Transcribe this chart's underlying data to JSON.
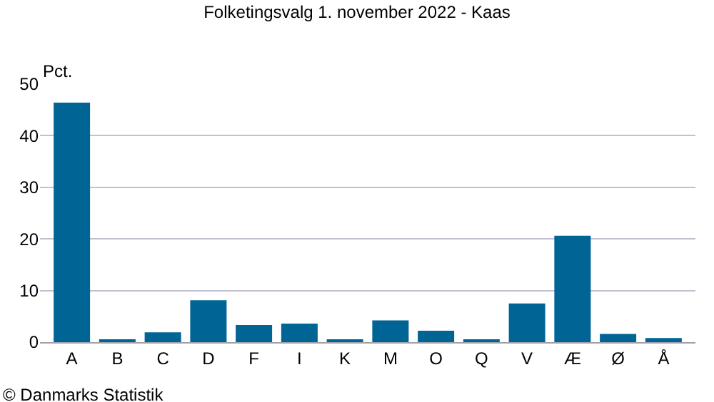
{
  "chart_data": {
    "type": "bar",
    "title": "Folketingsvalg 1. november 2022 - Kaas",
    "ylabel": "Pct.",
    "categories": [
      "A",
      "B",
      "C",
      "D",
      "F",
      "I",
      "K",
      "M",
      "O",
      "Q",
      "V",
      "Æ",
      "Ø",
      "Å"
    ],
    "values": [
      46.4,
      0.3,
      1.9,
      8.1,
      3.3,
      3.6,
      0.3,
      4.2,
      2.2,
      0.3,
      7.5,
      20.6,
      1.6,
      0.8
    ],
    "color": "#006495",
    "ylim": [
      0,
      50
    ],
    "yticks": [
      0,
      10,
      20,
      30,
      40,
      50
    ],
    "grid": "y",
    "annotations": [
      "© Danmarks Statistik"
    ]
  }
}
